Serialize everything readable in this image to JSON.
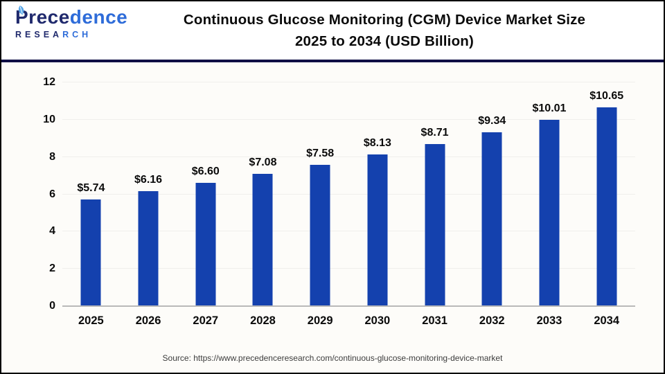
{
  "header": {
    "logo": {
      "word_part1": "Prece",
      "word_part2": "dence",
      "sub_part1": "RESEA",
      "sub_part2": "RCH",
      "leaf_icon": "leaf-icon",
      "navy_color": "#202a6d",
      "blue_color": "#2e6cd9"
    },
    "title_line1": "Continuous Glucose Monitoring (CGM) Device Market Size",
    "title_line2": "2025 to 2034 (USD Billion)"
  },
  "chart_data": {
    "type": "bar",
    "title": "Continuous Glucose Monitoring (CGM) Device Market Size 2025 to 2034 (USD Billion)",
    "categories": [
      "2025",
      "2026",
      "2027",
      "2028",
      "2029",
      "2030",
      "2031",
      "2032",
      "2033",
      "2034"
    ],
    "values": [
      5.74,
      6.16,
      6.6,
      7.08,
      7.58,
      8.13,
      8.71,
      9.34,
      10.01,
      10.65
    ],
    "value_labels": [
      "$5.74",
      "$6.16",
      "$6.60",
      "$7.08",
      "$7.58",
      "$8.13",
      "$8.71",
      "$9.34",
      "$10.01",
      "$10.65"
    ],
    "xlabel": "",
    "ylabel": "",
    "ylim": [
      0,
      12
    ],
    "yticks": [
      0,
      2,
      4,
      6,
      8,
      10,
      12
    ],
    "grid": true,
    "legend": "none",
    "bar_color": "#1441ae",
    "gridline_color": "#f0efec",
    "axis_line_color": "#b9b9b9"
  },
  "footer": {
    "source": "Source: https://www.precedenceresearch.com/continuous-glucose-monitoring-device-market"
  },
  "colors": {
    "header_divider": "#0f0f45",
    "chart_background": "#fdfcf9",
    "title_text": "#0a0a0a",
    "source_text": "#3c3c3c",
    "frame_border": "#000000"
  }
}
